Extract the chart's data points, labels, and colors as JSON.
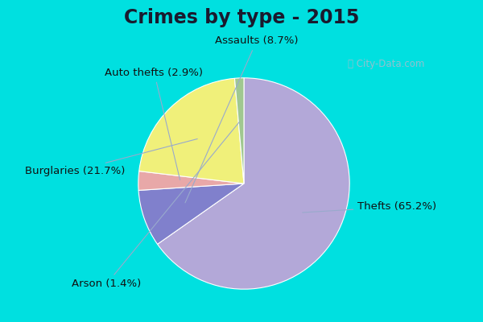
{
  "title": "Crimes by type - 2015",
  "slices": [
    {
      "label": "Thefts (65.2%)",
      "value": 65.2,
      "color": "#b3a8d8"
    },
    {
      "label": "Assaults (8.7%)",
      "value": 8.7,
      "color": "#8080cc"
    },
    {
      "label": "Auto thefts (2.9%)",
      "value": 2.9,
      "color": "#e8a8a8"
    },
    {
      "label": "Burglaries (21.7%)",
      "value": 21.7,
      "color": "#f0f07a"
    },
    {
      "label": "Arson (1.4%)",
      "value": 1.4,
      "color": "#a0c890"
    }
  ],
  "bg_outer": "#00e0e0",
  "bg_inner_top": "#e8f8f0",
  "bg_inner_bottom": "#c8e8d8",
  "title_fontsize": 17,
  "label_fontsize": 9.5,
  "startangle": 90,
  "watermark": "City-Data.com"
}
